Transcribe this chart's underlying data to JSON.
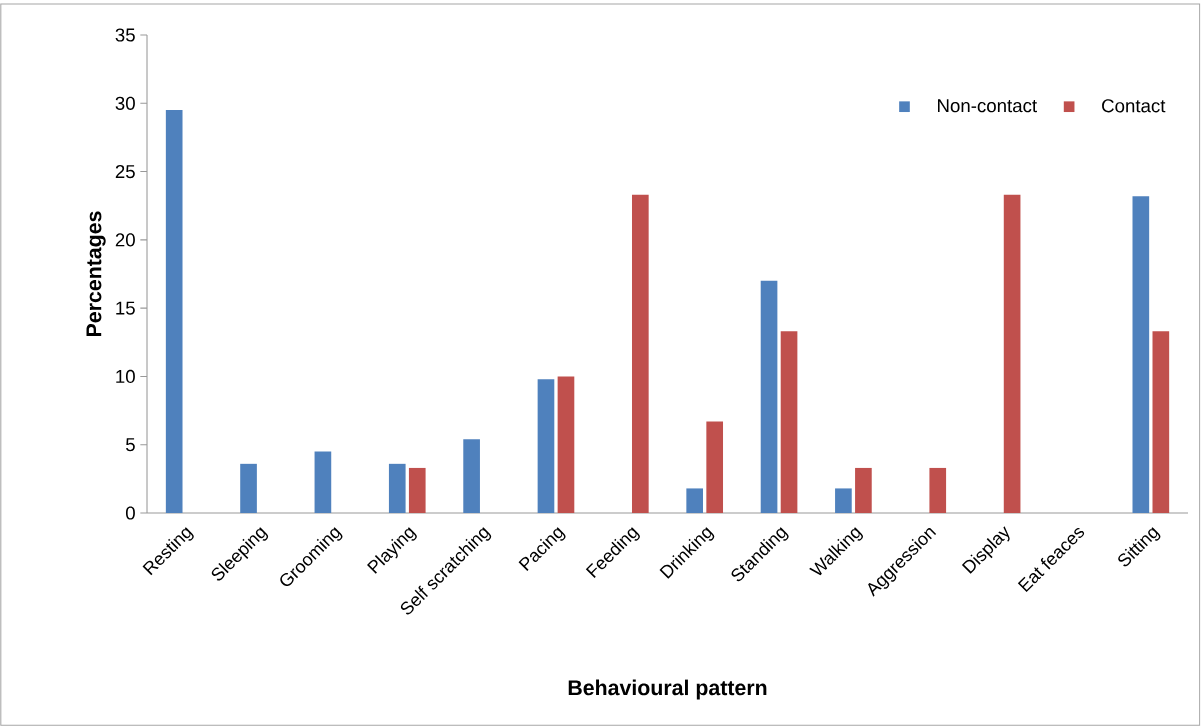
{
  "chart_data": {
    "type": "bar",
    "xlabel": "Behavioural pattern",
    "ylabel": "Percentages",
    "categories": [
      "Resting",
      "Sleeping",
      "Grooming",
      "Playing",
      "Self scratching",
      "Pacing",
      "Feeding",
      "Drinking",
      "Standing",
      "Walking",
      "Aggression",
      "Display",
      "Eat feaces",
      "Sitting"
    ],
    "series": [
      {
        "name": "Non-contact",
        "color": "#4f81bd",
        "values": [
          29.5,
          3.6,
          4.5,
          3.6,
          5.4,
          9.8,
          0,
          1.8,
          17,
          1.8,
          0,
          0,
          0,
          23.2
        ]
      },
      {
        "name": "Contact",
        "color": "#c0504d",
        "values": [
          0,
          0,
          0,
          3.3,
          0,
          10,
          23.3,
          6.7,
          13.3,
          3.3,
          3.3,
          23.3,
          0,
          13.3
        ]
      }
    ],
    "ylim": [
      0,
      35
    ],
    "yticks": [
      0,
      5,
      10,
      15,
      20,
      25,
      30,
      35
    ],
    "grid": false,
    "legend": "top right"
  }
}
